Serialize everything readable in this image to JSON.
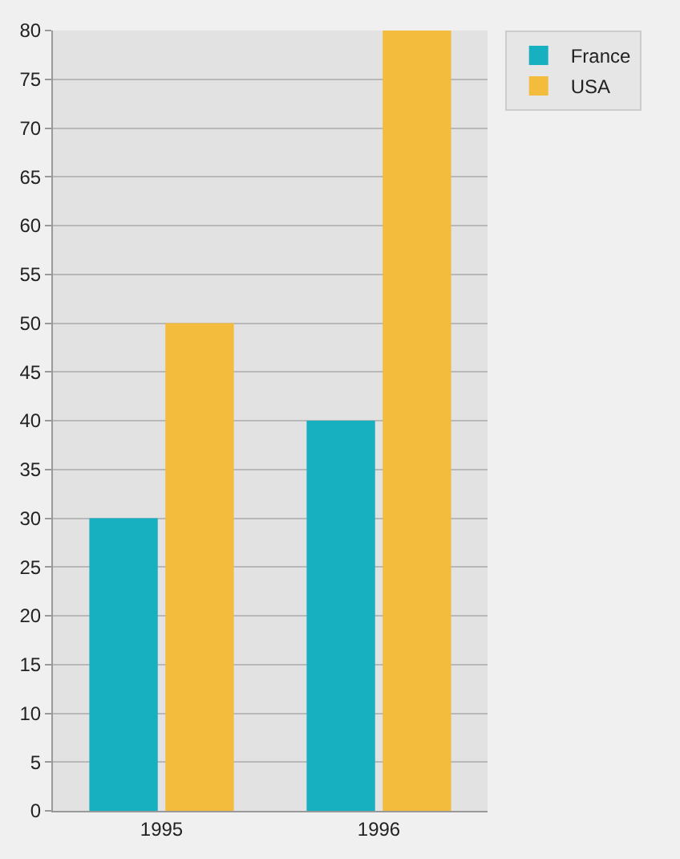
{
  "chart_data": {
    "type": "bar",
    "categories": [
      "1995",
      "1996"
    ],
    "series": [
      {
        "name": "France",
        "color": "#17b0c0",
        "values": [
          30,
          40
        ]
      },
      {
        "name": "USA",
        "color": "#f4bc3c",
        "values": [
          50,
          80
        ]
      }
    ],
    "ylim": [
      0,
      80
    ],
    "yticks": [
      0,
      5,
      10,
      15,
      20,
      25,
      30,
      35,
      40,
      45,
      50,
      55,
      60,
      65,
      70,
      75,
      80
    ],
    "grid": "y",
    "legend": "top right"
  }
}
